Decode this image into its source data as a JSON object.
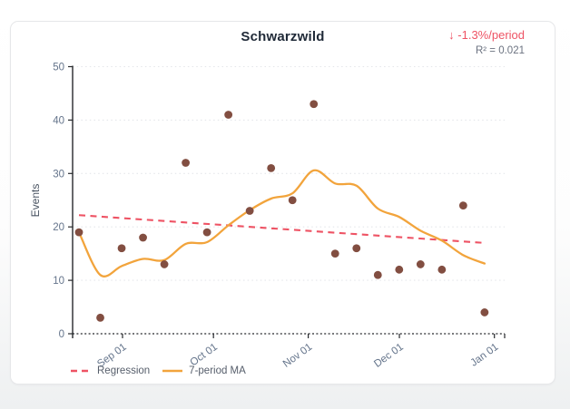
{
  "card": {
    "title": "Schwarzwild",
    "trend_label": "↓ -1.3%/period",
    "r2_label": "R² = 0.021"
  },
  "legend": [
    {
      "label": "Regression"
    },
    {
      "label": "7-period MA"
    }
  ],
  "chart_data": {
    "type": "scatter",
    "title": "Schwarzwild",
    "xlabel": "",
    "ylabel": "Events",
    "ylim": [
      0,
      50
    ],
    "y_ticks": [
      0,
      10,
      20,
      30,
      40,
      50
    ],
    "x_tick_labels": [
      "Sep 01",
      "Oct 01",
      "Nov 01",
      "Dec 01",
      "Jan 01"
    ],
    "x_tick_positions": [
      2.04,
      6.3,
      10.74,
      15.01,
      19.46
    ],
    "grid": true,
    "legend_position": "bottom-left",
    "series": [
      {
        "name": "Events",
        "type": "scatter",
        "values": [
          19,
          3,
          16,
          18,
          13,
          32,
          19,
          41,
          23,
          31,
          25,
          43,
          15,
          16,
          11,
          12,
          13,
          12,
          24,
          4
        ]
      },
      {
        "name": "7-period MA",
        "type": "line",
        "values": [
          19,
          11,
          12.67,
          14,
          13.8,
          16.83,
          17.14,
          20.29,
          23.14,
          25.29,
          26.29,
          30.57,
          28.14,
          27.71,
          23.43,
          21.86,
          19.29,
          17.43,
          14.71,
          13.14
        ]
      },
      {
        "name": "Regression",
        "type": "line",
        "style": "dashed",
        "endpoints": [
          22.2,
          17.0
        ]
      }
    ],
    "annotations": {
      "trend_text": "↓ -1.3%/period",
      "trend_value_pct_per_period": -1.3,
      "r_squared": 0.021,
      "r_squared_label": "R² = 0.021"
    },
    "colors": {
      "scatter": "#824e41",
      "ma_line": "#f2a43c",
      "regression": "#ee5364",
      "trend_text": "#ee5364",
      "axis": "#26282c",
      "grid": "#e4e6ea",
      "tick_label": "#64748b",
      "title": "#1f2937",
      "muted_text": "#6b7280",
      "legend_text": "#565e6b"
    }
  }
}
